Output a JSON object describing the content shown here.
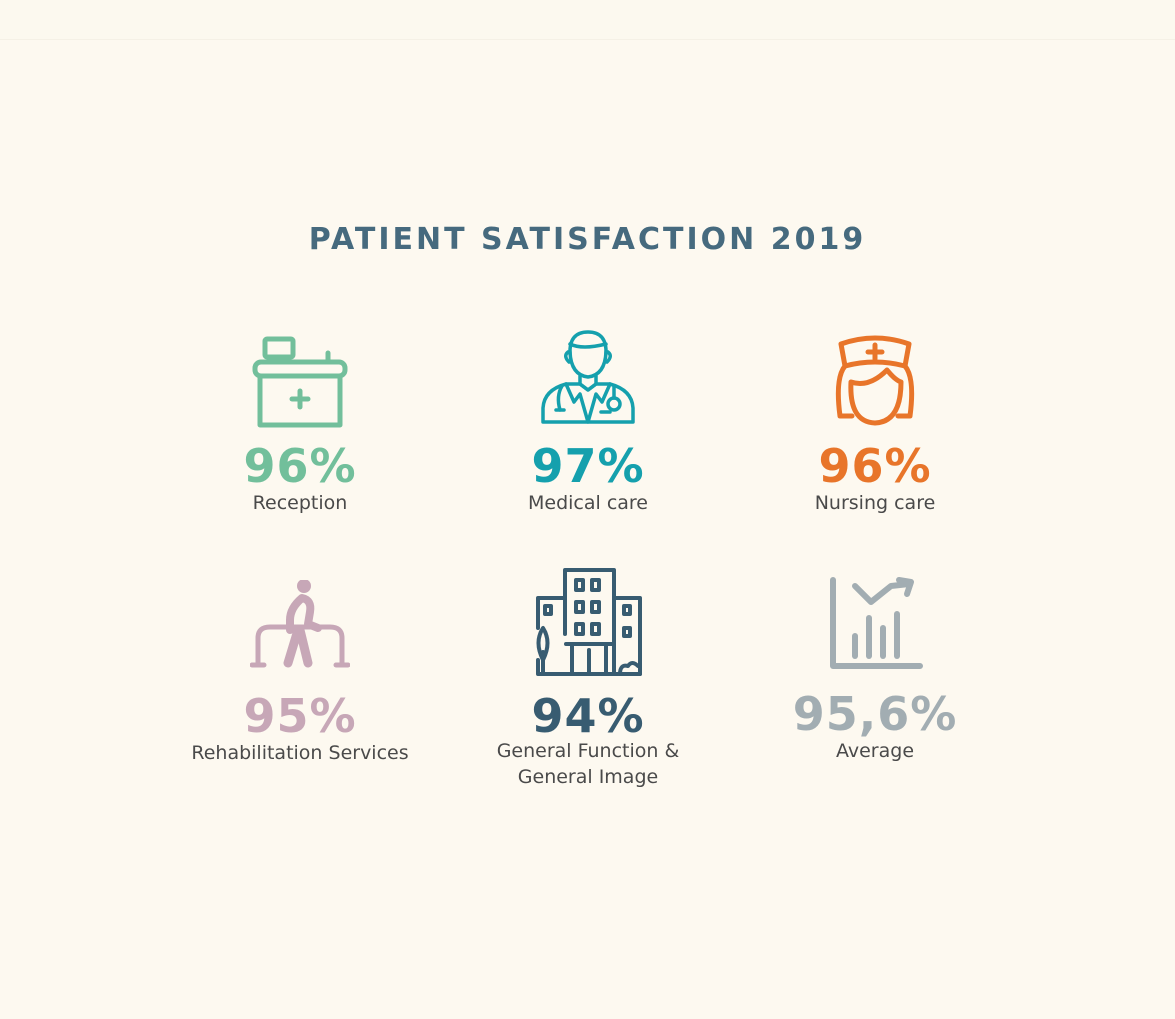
{
  "title": "PATIENT SATISFACTION 2019",
  "stats": [
    {
      "value": "96%",
      "label": "Reception",
      "color": "#72bf9b",
      "icon": "reception-desk-icon"
    },
    {
      "value": "97%",
      "label": "Medical care",
      "color": "#15a0ad",
      "icon": "doctor-icon"
    },
    {
      "value": "96%",
      "label": "Nursing care",
      "color": "#e8752a",
      "icon": "nurse-icon"
    },
    {
      "value": "95%",
      "label": "Rehabilitation Services",
      "color": "#c7a7b7",
      "icon": "rehabilitation-walker-icon"
    },
    {
      "value": "94%",
      "label": "General Function &\nGeneral Image",
      "color": "#385c71",
      "icon": "hospital-building-icon"
    },
    {
      "value": "95,6%",
      "label": "Average",
      "color": "#a2adb2",
      "icon": "bar-chart-trend-icon"
    }
  ]
}
